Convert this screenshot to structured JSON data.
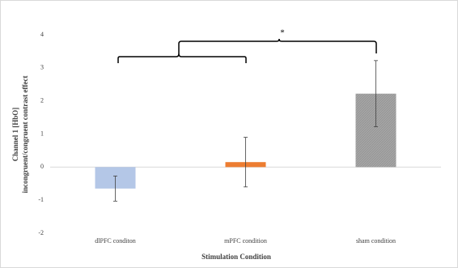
{
  "chart_data": {
    "type": "bar",
    "categories": [
      "dlPFC conditon",
      "mPFC condition",
      "sham condition"
    ],
    "values": [
      -0.65,
      0.15,
      2.22
    ],
    "errors": [
      0.38,
      0.75,
      1.0
    ],
    "colors": [
      "#b4c7e7",
      "#ed7d31",
      "#a5a5a5"
    ],
    "ylim": [
      -2,
      4
    ],
    "yticks": [
      -2,
      -1,
      0,
      1,
      2,
      3,
      4
    ],
    "y_label": [
      "Channel 1 [HbO]",
      "incongruent/congruent contrast effect"
    ],
    "x_label": "Stimulation Condition",
    "annotation": "*"
  }
}
